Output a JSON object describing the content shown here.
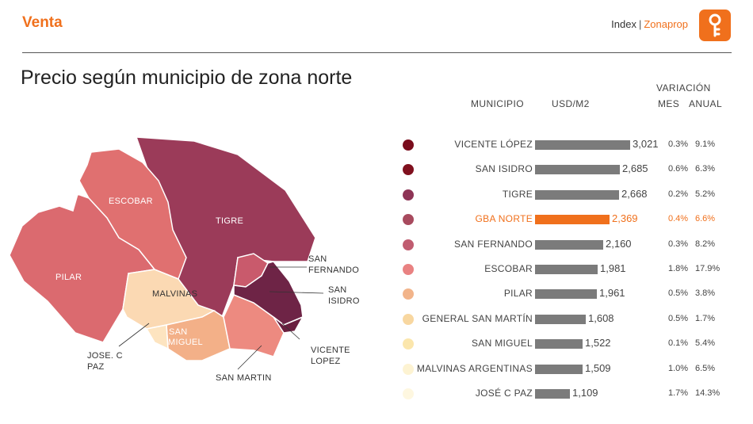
{
  "header": {
    "section": "Venta",
    "brand_index": "Index",
    "brand_sep": "|",
    "brand_name": "Zonaprop"
  },
  "title": "Precio según municipio de zona norte",
  "columns": {
    "variacion": "VARIACIÓN",
    "municipio": "MUNICIPIO",
    "usd_m2": "USD/M2",
    "mes": "MES",
    "anual": "ANUAL"
  },
  "map": {
    "labels": {
      "escobar": "ESCOBAR",
      "tigre": "TIGRE",
      "pilar": "PILAR",
      "malvinas": "MALVINAS",
      "san_miguel_1": "SAN",
      "san_miguel_2": "MIGUEL",
      "san_fernando_1": "SAN",
      "san_fernando_2": "FERNANDO",
      "san_isidro_1": "SAN",
      "san_isidro_2": "ISIDRO",
      "vicente_lopez_1": "VICENTE",
      "vicente_lopez_2": "LOPEZ",
      "jose_c_paz_1": "JOSE. C",
      "jose_c_paz_2": "PAZ",
      "san_martin": "SAN MARTIN"
    }
  },
  "chart_data": {
    "type": "bar",
    "orientation": "horizontal",
    "title": "Precio según municipio de zona norte",
    "xlabel": "USD/M2",
    "categories": [
      "VICENTE LÓPEZ",
      "SAN ISIDRO",
      "TIGRE",
      "GBA NORTE",
      "SAN FERNANDO",
      "ESCOBAR",
      "PILAR",
      "GENERAL SAN MARTÍN",
      "SAN MIGUEL",
      "MALVINAS ARGENTINAS",
      "JOSÉ C PAZ"
    ],
    "values": [
      3021,
      2685,
      2668,
      2369,
      2160,
      1981,
      1961,
      1608,
      1522,
      1509,
      1109
    ],
    "value_labels": [
      "3,021",
      "2,685",
      "2,668",
      "2,369",
      "2,160",
      "1,981",
      "1,961",
      "1,608",
      "1,522",
      "1,509",
      "1,109"
    ],
    "variacion_mes": [
      "0.3%",
      "0.6%",
      "0.2%",
      "0.4%",
      "0.3%",
      "1.8%",
      "0.5%",
      "0.5%",
      "0.1%",
      "1.0%",
      "1.7%"
    ],
    "variacion_anual": [
      "9.1%",
      "6.3%",
      "5.2%",
      "6.6%",
      "8.2%",
      "17.9%",
      "3.8%",
      "1.7%",
      "5.4%",
      "6.5%",
      "14.3%"
    ],
    "dot_colors": [
      "#7a0c1c",
      "#80101e",
      "#8e3456",
      "#a84a5e",
      "#c05c70",
      "#e98282",
      "#f2b48a",
      "#f8d7a0",
      "#fbe6ac",
      "#fdf3d2",
      "#fef7e0"
    ],
    "highlight_index": 3,
    "bar_color": "#7b7b7b",
    "highlight_color": "#f0701c"
  }
}
